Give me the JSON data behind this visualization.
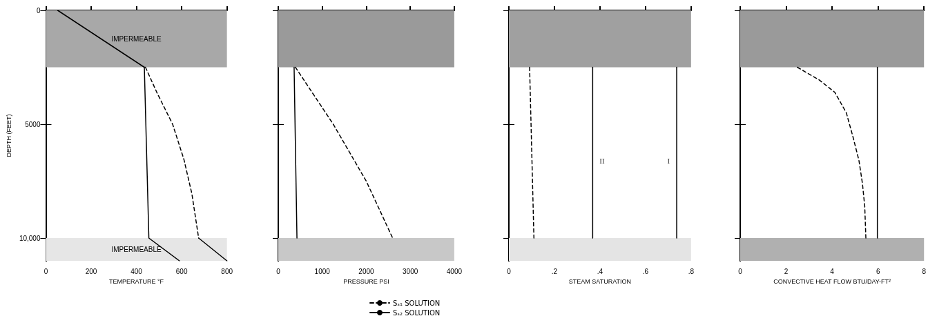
{
  "chart_data": [
    {
      "type": "line",
      "xlabel": "TEMPERATURE °F",
      "ylabel": "DEPTH (FEET)",
      "xlim": [
        0,
        800
      ],
      "xticks": [
        0,
        200,
        400,
        600,
        800
      ],
      "ylim": [
        11000,
        0
      ],
      "yticks": [
        0,
        5000,
        {
          "value": 10000,
          "label": "10,000"
        }
      ],
      "grid": false,
      "legend": false,
      "marker": "none",
      "bands": [
        {
          "axis": "y",
          "from": 0,
          "to": 2500,
          "label": "IMPERMEABLE",
          "color": "#a8a8a8"
        },
        {
          "axis": "y",
          "from": 10000,
          "to": 11000,
          "label": "IMPERMEABLE",
          "color": "#e6e6e6"
        }
      ],
      "series": [
        {
          "color": "#000000",
          "line_style": "solid",
          "x": [
            52,
            435
          ],
          "values": [
            0,
            2500
          ]
        },
        {
          "color": "#000000",
          "line_style": "solid",
          "x": [
            435,
            455,
            590
          ],
          "values": [
            2500,
            10000,
            11000
          ]
        },
        {
          "color": "#000000",
          "line_style": "dashed",
          "x": [
            440,
            490,
            560,
            610,
            645,
            675
          ],
          "values": [
            2500,
            3600,
            5000,
            6550,
            8050,
            10000
          ]
        },
        {
          "color": "#000000",
          "line_style": "solid",
          "x": [
            675,
            800
          ],
          "values": [
            10000,
            11000
          ]
        }
      ]
    },
    {
      "type": "line",
      "xlabel": "PRESSURE PSI",
      "xlim": [
        0,
        4000
      ],
      "xticks": [
        0,
        1000,
        2000,
        3000,
        4000
      ],
      "ylim": [
        11000,
        0
      ],
      "yticks": [
        0,
        5000,
        10000
      ],
      "tick_labels": "x",
      "grid": false,
      "legend": "bottom",
      "marker": "none",
      "bands": [
        {
          "axis": "y",
          "from": 0,
          "to": 2500,
          "color": "#9a9a9a"
        },
        {
          "axis": "y",
          "from": 10000,
          "to": 11000,
          "color": "#c8c8c8"
        }
      ],
      "series": [
        {
          "name": "Sₛ₁ SOLUTION",
          "color": "#000000",
          "line_style": "dashed",
          "x": [
            390,
            1250,
            2000,
            2600
          ],
          "values": [
            2500,
            5000,
            7500,
            10000
          ]
        },
        {
          "name": "Sₛ₂ SOLUTION",
          "color": "#000000",
          "line_style": "solid",
          "x": [
            360,
            425
          ],
          "values": [
            2500,
            10000
          ]
        }
      ]
    },
    {
      "type": "line",
      "xlabel": "STEAM SATURATION",
      "xlim": [
        0,
        0.8
      ],
      "xticks": [
        0,
        {
          "value": 0.2,
          "label": ".2"
        },
        {
          "value": 0.4,
          "label": ".4"
        },
        {
          "value": 0.6,
          "label": ".6"
        },
        {
          "value": 0.8,
          "label": ".8"
        }
      ],
      "ylim": [
        11000,
        0
      ],
      "yticks": [
        0,
        5000,
        10000
      ],
      "tick_labels": "x",
      "grid": false,
      "legend": false,
      "marker": "none",
      "bands": [
        {
          "axis": "y",
          "from": 0,
          "to": 2500,
          "color": "#a0a0a0"
        },
        {
          "axis": "y",
          "from": 10000,
          "to": 11000,
          "color": "#e4e4e4"
        }
      ],
      "annotations": [
        {
          "text": "II",
          "x": 0.368,
          "y": 6600
        },
        {
          "text": "I",
          "x": 0.737,
          "y": 6600
        }
      ],
      "series": [
        {
          "color": "#000000",
          "line_style": "dashed",
          "x": [
            0.091,
            0.11
          ],
          "values": [
            2500,
            10000
          ]
        },
        {
          "color": "#000000",
          "line_style": "solid",
          "x": [
            0.368,
            0.368
          ],
          "values": [
            2500,
            10000
          ]
        },
        {
          "color": "#000000",
          "line_style": "solid",
          "x": [
            0.737,
            0.737
          ],
          "values": [
            2500,
            10000
          ]
        }
      ]
    },
    {
      "type": "line",
      "xlabel": "CONVECTIVE HEAT FLOW BTU/DAY-FT²",
      "xlim": [
        0,
        8
      ],
      "xticks": [
        0,
        2,
        4,
        6,
        8
      ],
      "ylim": [
        11000,
        0
      ],
      "yticks": [
        0,
        5000,
        10000
      ],
      "tick_labels": "x",
      "grid": false,
      "legend": false,
      "marker": "none",
      "bands": [
        {
          "axis": "y",
          "from": 0,
          "to": 2500,
          "color": "#9a9a9a"
        },
        {
          "axis": "y",
          "from": 10000,
          "to": 11000,
          "color": "#b0b0b0"
        }
      ],
      "series": [
        {
          "color": "#000000",
          "line_style": "dashed",
          "x": [
            2.49,
            3.43,
            4.12,
            4.62,
            4.92,
            5.17,
            5.32,
            5.42,
            5.47
          ],
          "values": [
            2500,
            3050,
            3600,
            4500,
            5600,
            6600,
            7600,
            8600,
            10000
          ]
        },
        {
          "color": "#000000",
          "line_style": "solid",
          "x": [
            5.97,
            5.97
          ],
          "values": [
            2500,
            10000
          ]
        }
      ]
    }
  ]
}
